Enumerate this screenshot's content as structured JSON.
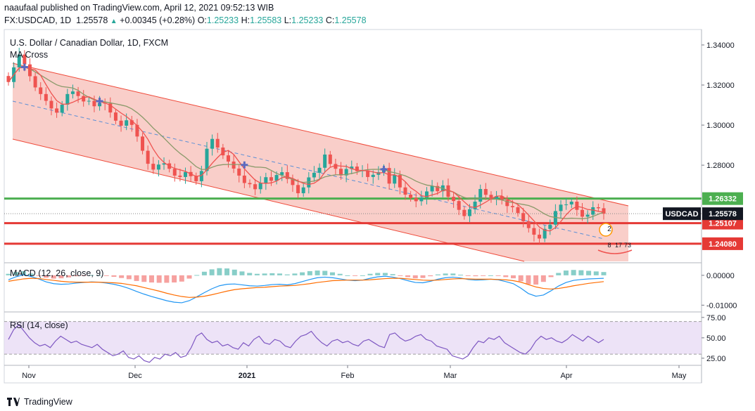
{
  "header": {
    "line1": "naaufaal published on TradingView.com, April 12, 2021 09:52:13 WIB",
    "symbol": "FX:USDCAD, 1D",
    "last": "1.25578",
    "change": "+0.00345 (+0.28%)",
    "o_label": "O:",
    "o": "1.25233",
    "h_label": "H:",
    "h": "1.25583",
    "l_label": "L:",
    "l": "1.25233",
    "c_label": "C:",
    "c": "1.25578"
  },
  "overlay": {
    "title": "U.S. Dollar / Canadian Dollar, 1D, FXCM",
    "ma_label": "MA Cross"
  },
  "brand": {
    "name": "TradingView"
  },
  "colors": {
    "up": "#26a69a",
    "down": "#ef5350",
    "channel_fill": "#f8c5c0",
    "channel_line": "#ef4a3a",
    "green_level": "#4caf50",
    "red_level": "#e53935",
    "ma_fast": "#ef5350",
    "ma_slow": "#8a9a6a",
    "macd": "#2196f3",
    "signal": "#ff6d00",
    "rsi": "#7e57c2",
    "rsi_band": "#e8dcf5",
    "label_dark": "#131722"
  },
  "chart_data": [
    {
      "type": "candlestick",
      "title": "U.S. Dollar / Canadian Dollar, 1D, FXCM",
      "ylim": [
        1.232,
        1.347
      ],
      "y_ticks": [
        "1.34000",
        "1.32000",
        "1.30000",
        "1.28000"
      ],
      "x_ticks": [
        "Nov",
        "Dec",
        "2021",
        "Feb",
        "Mar",
        "Apr",
        "May"
      ],
      "close_series": [
        1.3215,
        1.3288,
        1.3352,
        1.3303,
        1.3244,
        1.3188,
        1.3155,
        1.3121,
        1.3083,
        1.3062,
        1.3102,
        1.3155,
        1.3168,
        1.3145,
        1.3118,
        1.3121,
        1.3094,
        1.3111,
        1.3108,
        1.3063,
        1.3022,
        1.2997,
        1.3024,
        1.3001,
        1.2943,
        1.2872,
        1.2807,
        1.2778,
        1.2803,
        1.2809,
        1.2782,
        1.2748,
        1.2741,
        1.2766,
        1.2745,
        1.272,
        1.2771,
        1.2882,
        1.2931,
        1.2888,
        1.2849,
        1.2818,
        1.2783,
        1.2748,
        1.2711,
        1.2705,
        1.268,
        1.2711,
        1.274,
        1.2722,
        1.2751,
        1.2765,
        1.2731,
        1.2701,
        1.266,
        1.2689,
        1.2739,
        1.2762,
        1.2787,
        1.2853,
        1.2806,
        1.2782,
        1.2749,
        1.2781,
        1.2793,
        1.277,
        1.2774,
        1.2741,
        1.2752,
        1.2765,
        1.2786,
        1.2708,
        1.2751,
        1.2689,
        1.2653,
        1.2636,
        1.262,
        1.2638,
        1.2669,
        1.2696,
        1.267,
        1.2699,
        1.2642,
        1.2621,
        1.2577,
        1.2546,
        1.258,
        1.2618,
        1.2681,
        1.2652,
        1.263,
        1.2645,
        1.2626,
        1.2596,
        1.259,
        1.2561,
        1.252,
        1.2486,
        1.2453,
        1.2434,
        1.2482,
        1.2503,
        1.2571,
        1.2603,
        1.2604,
        1.2618,
        1.2577,
        1.2543,
        1.2553,
        1.259,
        1.2585,
        1.2558
      ],
      "levels": [
        {
          "name": "resistance",
          "value": 1.26332,
          "label": "1.26332"
        },
        {
          "name": "support-1",
          "value": 1.25107,
          "label": "1.25107"
        },
        {
          "name": "support-2",
          "value": 1.2408,
          "label": "1.24080"
        },
        {
          "name": "last-price",
          "value": 1.25578,
          "label": "1.25578",
          "tag": "USDCAD"
        }
      ],
      "badges": [
        "2",
        "8",
        "17",
        "73"
      ]
    },
    {
      "type": "line",
      "title": "MACD (12, 26, close, 9)",
      "y_ticks": [
        "0.00000",
        "-0.01000"
      ],
      "ylim": [
        -0.0118,
        0.0035
      ],
      "series": [
        {
          "name": "MACD",
          "values": [
            -0.0015,
            -0.0005,
            0.0002,
            -0.0004,
            -0.0012,
            -0.0022,
            -0.0028,
            -0.003,
            -0.0029,
            -0.0026,
            -0.0024,
            -0.0022,
            -0.0023,
            -0.0026,
            -0.003,
            -0.0036,
            -0.0044,
            -0.0054,
            -0.0063,
            -0.0071,
            -0.0078,
            -0.0085,
            -0.009,
            -0.0092,
            -0.0085,
            -0.0072,
            -0.0058,
            -0.0045,
            -0.0035,
            -0.003,
            -0.0029,
            -0.0032,
            -0.0035,
            -0.0036,
            -0.0034,
            -0.0031,
            -0.003,
            -0.0032,
            -0.0028,
            -0.0021,
            -0.0014,
            -0.0008,
            -0.0006,
            -0.0008,
            -0.0012,
            -0.0016,
            -0.0018,
            -0.0016,
            -0.001,
            -0.0005,
            -0.0003,
            -0.0006,
            -0.0011,
            -0.0018,
            -0.0024,
            -0.0025,
            -0.002,
            -0.0013,
            -0.0008,
            -0.0006,
            -0.0009,
            -0.0014,
            -0.0016,
            -0.0015,
            -0.0013,
            -0.0015,
            -0.0021,
            -0.0028,
            -0.0043,
            -0.0061,
            -0.007,
            -0.0066,
            -0.0052,
            -0.0036,
            -0.0024,
            -0.0017,
            -0.0014,
            -0.0012,
            -0.0011,
            -0.001
          ]
        },
        {
          "name": "Signal",
          "values": [
            -0.002,
            -0.0016,
            -0.0012,
            -0.001,
            -0.0011,
            -0.0014,
            -0.0017,
            -0.002,
            -0.0022,
            -0.0023,
            -0.0023,
            -0.0023,
            -0.0023,
            -0.0024,
            -0.0025,
            -0.0027,
            -0.0031,
            -0.0035,
            -0.0041,
            -0.0047,
            -0.0053,
            -0.006,
            -0.0066,
            -0.0071,
            -0.0074,
            -0.0073,
            -0.007,
            -0.0065,
            -0.0059,
            -0.0053,
            -0.0048,
            -0.0045,
            -0.0043,
            -0.0041,
            -0.004,
            -0.0038,
            -0.0036,
            -0.0035,
            -0.0034,
            -0.0031,
            -0.0028,
            -0.0024,
            -0.0021,
            -0.0018,
            -0.0017,
            -0.0016,
            -0.0016,
            -0.0016,
            -0.0015,
            -0.0013,
            -0.0011,
            -0.001,
            -0.001,
            -0.0012,
            -0.0014,
            -0.0016,
            -0.0017,
            -0.0016,
            -0.0014,
            -0.0012,
            -0.0011,
            -0.0012,
            -0.0013,
            -0.0013,
            -0.0013,
            -0.0014,
            -0.0015,
            -0.0018,
            -0.0023,
            -0.0031,
            -0.0039,
            -0.0044,
            -0.0046,
            -0.0044,
            -0.004,
            -0.0035,
            -0.0031,
            -0.0027,
            -0.0024,
            -0.0021
          ]
        }
      ]
    },
    {
      "type": "line",
      "title": "RSI (14, close)",
      "y_ticks": [
        "75.00",
        "50.00",
        "25.00"
      ],
      "ylim": [
        18,
        80
      ],
      "series": [
        {
          "name": "RSI",
          "values": [
            48,
            60,
            66,
            58,
            50,
            44,
            40,
            42,
            38,
            46,
            52,
            48,
            44,
            46,
            42,
            40,
            38,
            42,
            36,
            32,
            28,
            30,
            34,
            26,
            24,
            28,
            22,
            20,
            26,
            24,
            30,
            28,
            32,
            26,
            28,
            38,
            52,
            56,
            48,
            44,
            46,
            40,
            42,
            38,
            36,
            44,
            40,
            48,
            52,
            44,
            42,
            48,
            46,
            40,
            38,
            46,
            52,
            54,
            58,
            50,
            44,
            40,
            46,
            48,
            44,
            46,
            42,
            40,
            46,
            48,
            44,
            40,
            38,
            54,
            56,
            50,
            46,
            48,
            52,
            54,
            48,
            46,
            40,
            38,
            36,
            28,
            26,
            24,
            28,
            38,
            46,
            44,
            50,
            48,
            52,
            44,
            40,
            36,
            32,
            30,
            36,
            46,
            52,
            48,
            50,
            46,
            44,
            48,
            54,
            50,
            46,
            52,
            48,
            44,
            48
          ]
        }
      ]
    }
  ]
}
